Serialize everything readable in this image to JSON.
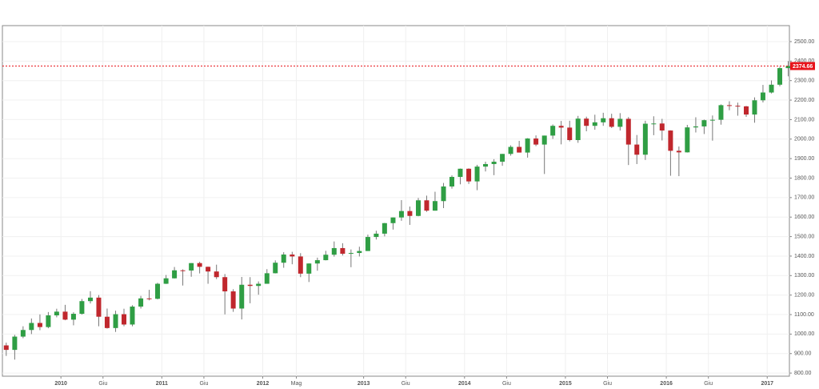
{
  "chart_data": {
    "type": "candlestick",
    "x": [
      2009.458,
      2009.542,
      2009.625,
      2009.708,
      2009.792,
      2009.875,
      2009.958,
      2010.042,
      2010.125,
      2010.208,
      2010.292,
      2010.375,
      2010.458,
      2010.542,
      2010.625,
      2010.708,
      2010.792,
      2010.875,
      2010.958,
      2011.042,
      2011.125,
      2011.208,
      2011.292,
      2011.375,
      2011.458,
      2011.542,
      2011.625,
      2011.708,
      2011.792,
      2011.875,
      2011.958,
      2012.042,
      2012.125,
      2012.208,
      2012.292,
      2012.375,
      2012.458,
      2012.542,
      2012.625,
      2012.708,
      2012.792,
      2012.875,
      2012.958,
      2013.042,
      2013.125,
      2013.208,
      2013.292,
      2013.375,
      2013.458,
      2013.542,
      2013.625,
      2013.708,
      2013.792,
      2013.875,
      2013.958,
      2014.042,
      2014.125,
      2014.208,
      2014.292,
      2014.375,
      2014.458,
      2014.542,
      2014.625,
      2014.708,
      2014.792,
      2014.875,
      2014.958,
      2015.042,
      2015.125,
      2015.208,
      2015.292,
      2015.375,
      2015.458,
      2015.542,
      2015.625,
      2015.708,
      2015.792,
      2015.875,
      2015.958,
      2016.042,
      2016.125,
      2016.208,
      2016.292,
      2016.375,
      2016.458,
      2016.542,
      2016.625,
      2016.708,
      2016.792,
      2016.875,
      2016.958,
      2017.042,
      2017.125,
      2017.208
    ],
    "open": [
      942,
      919,
      987,
      1021,
      1057,
      1036,
      1096,
      1115,
      1074,
      1104,
      1169,
      1187,
      1089,
      1031,
      1102,
      1049,
      1141,
      1183,
      1181,
      1258,
      1286,
      1327,
      1326,
      1364,
      1345,
      1321,
      1292,
      1219,
      1131,
      1253,
      1247,
      1258,
      1312,
      1366,
      1408,
      1398,
      1310,
      1362,
      1379,
      1407,
      1441,
      1412,
      1416,
      1426,
      1498,
      1515,
      1569,
      1598,
      1631,
      1606,
      1686,
      1633,
      1682,
      1757,
      1806,
      1848,
      1783,
      1859,
      1872,
      1884,
      1924,
      1960,
      1931,
      2003,
      1972,
      2018,
      2068,
      2059,
      1995,
      2105,
      2068,
      2086,
      2107,
      2063,
      2104,
      1972,
      1920,
      2079,
      2080,
      2044,
      1940,
      1932,
      2060,
      2065,
      2097,
      2099,
      2174,
      2171,
      2168,
      2126,
      2199,
      2239,
      2279,
      2364
    ],
    "high": [
      956,
      996,
      1040,
      1080,
      1101,
      1113,
      1130,
      1150,
      1112,
      1180,
      1220,
      1200,
      1131,
      1120,
      1130,
      1148,
      1196,
      1227,
      1263,
      1303,
      1344,
      1332,
      1364,
      1371,
      1346,
      1356,
      1308,
      1230,
      1293,
      1292,
      1270,
      1333,
      1378,
      1420,
      1422,
      1415,
      1363,
      1392,
      1427,
      1475,
      1466,
      1434,
      1448,
      1510,
      1530,
      1570,
      1598,
      1687,
      1654,
      1698,
      1710,
      1730,
      1775,
      1814,
      1849,
      1850,
      1868,
      1884,
      1897,
      1924,
      1968,
      1991,
      2005,
      2019,
      2018,
      2075,
      2093,
      2094,
      2119,
      2115,
      2125,
      2135,
      2130,
      2133,
      2113,
      2021,
      2094,
      2117,
      2104,
      2045,
      1962,
      2073,
      2112,
      2100,
      2121,
      2178,
      2194,
      2187,
      2170,
      2214,
      2278,
      2301,
      2371,
      2401
    ],
    "low": [
      888,
      869,
      979,
      1000,
      1020,
      1030,
      1086,
      1071,
      1045,
      1100,
      1157,
      1040,
      1028,
      1011,
      1040,
      1040,
      1131,
      1173,
      1178,
      1257,
      1285,
      1249,
      1294,
      1311,
      1258,
      1282,
      1101,
      1114,
      1075,
      1158,
      1202,
      1258,
      1311,
      1340,
      1358,
      1292,
      1267,
      1325,
      1378,
      1397,
      1403,
      1343,
      1398,
      1426,
      1485,
      1501,
      1536,
      1581,
      1560,
      1604,
      1627,
      1633,
      1646,
      1746,
      1768,
      1770,
      1738,
      1834,
      1815,
      1863,
      1915,
      1931,
      1905,
      1964,
      1821,
      2001,
      1973,
      1988,
      1981,
      2040,
      2048,
      2068,
      2057,
      2044,
      1867,
      1872,
      1893,
      2020,
      1993,
      1812,
      1810,
      1931,
      2034,
      2026,
      1992,
      2074,
      2148,
      2120,
      2114,
      2084,
      2188,
      2234,
      2271,
      2322
    ],
    "close": [
      919,
      987,
      1021,
      1057,
      1036,
      1096,
      1115,
      1074,
      1104,
      1169,
      1187,
      1089,
      1031,
      1102,
      1049,
      1141,
      1183,
      1181,
      1258,
      1286,
      1327,
      1326,
      1364,
      1345,
      1321,
      1292,
      1219,
      1131,
      1253,
      1247,
      1258,
      1312,
      1366,
      1408,
      1398,
      1310,
      1362,
      1379,
      1407,
      1441,
      1412,
      1416,
      1426,
      1498,
      1515,
      1569,
      1598,
      1631,
      1606,
      1686,
      1633,
      1682,
      1757,
      1806,
      1848,
      1783,
      1859,
      1872,
      1884,
      1924,
      1960,
      1931,
      2003,
      1972,
      2018,
      2068,
      2059,
      1995,
      2105,
      2068,
      2086,
      2107,
      2063,
      2104,
      1972,
      1920,
      2079,
      2080,
      2044,
      1940,
      1932,
      2060,
      2065,
      2097,
      2099,
      2174,
      2171,
      2168,
      2126,
      2199,
      2239,
      2279,
      2364,
      2375
    ],
    "up_color": "#2f9e44",
    "down_color": "#c0272d",
    "xlim": [
      2009.42,
      2017.22
    ],
    "ylim": [
      784,
      2582
    ],
    "xticks": [
      2010,
      {
        "value": 2010.417,
        "label": "Giu"
      },
      2011,
      {
        "value": 2011.417,
        "label": "Giu"
      },
      2012,
      {
        "value": 2012.333,
        "label": "Mag"
      },
      2013,
      {
        "value": 2013.417,
        "label": "Giu"
      },
      2014,
      {
        "value": 2014.417,
        "label": "Giu"
      },
      2015,
      {
        "value": 2015.417,
        "label": "Giu"
      },
      2016,
      {
        "value": 2016.417,
        "label": "Giu"
      },
      2017
    ],
    "yticks": [
      {
        "value": 800,
        "label": "800.00"
      },
      {
        "value": 900,
        "label": "900.00"
      },
      {
        "value": 1000,
        "label": "1000.00"
      },
      {
        "value": 1100,
        "label": "1100.00"
      },
      {
        "value": 1200,
        "label": "1200.00"
      },
      {
        "value": 1300,
        "label": "1300.00"
      },
      {
        "value": 1400,
        "label": "1400.00"
      },
      {
        "value": 1500,
        "label": "1500.00"
      },
      {
        "value": 1600,
        "label": "1600.00"
      },
      {
        "value": 1700,
        "label": "1700.00"
      },
      {
        "value": 1800,
        "label": "1800.00"
      },
      {
        "value": 1900,
        "label": "1900.00"
      },
      {
        "value": 2000,
        "label": "2000.00"
      },
      {
        "value": 2100,
        "label": "2100.00"
      },
      {
        "value": 2200,
        "label": "2200.00"
      },
      {
        "value": 2300,
        "label": "2300.00"
      },
      {
        "value": 2400,
        "label": "2400.00"
      },
      {
        "value": 2500,
        "label": "2500.00"
      }
    ],
    "grid": true,
    "last_price": 2374.66,
    "last_price_color": "#e8141b"
  }
}
